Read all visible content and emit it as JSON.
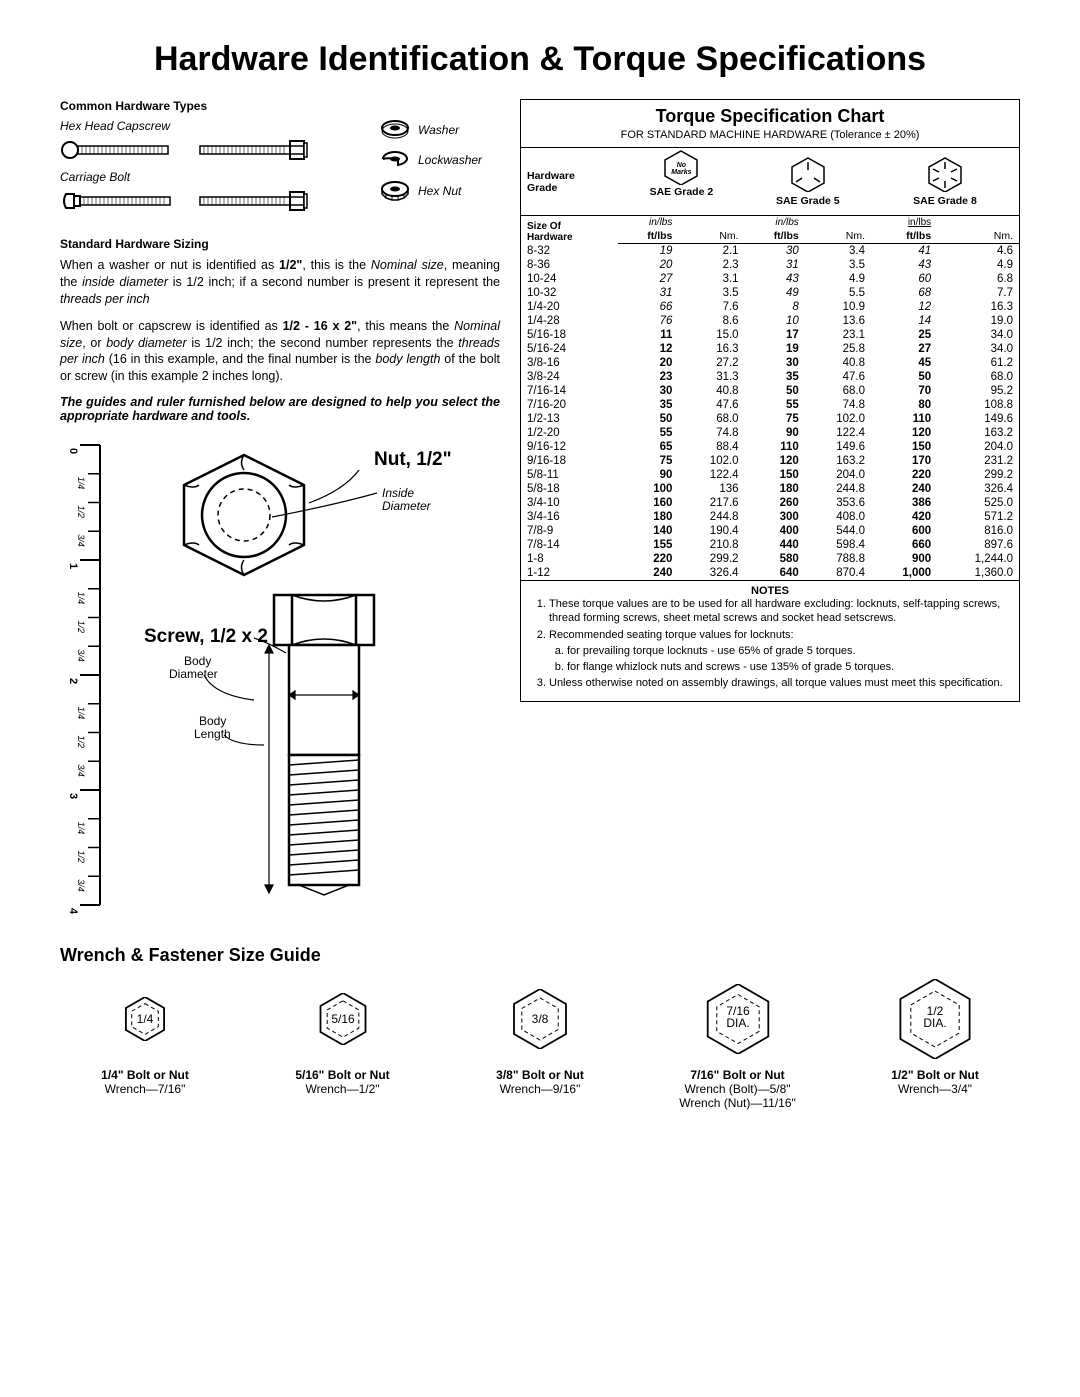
{
  "title": "Hardware Identification  &  Torque Specifications",
  "title_fontsize": 34,
  "hw_types": {
    "heading": "Common Hardware Types",
    "items": {
      "hex_capscrew": "Hex Head Capscrew",
      "carriage_bolt": "Carriage Bolt",
      "washer": "Washer",
      "lockwasher": "Lockwasher",
      "hex_nut": "Hex Nut"
    }
  },
  "sizing": {
    "heading": "Standard Hardware Sizing",
    "para1_pre": "When a washer or nut is identified as ",
    "para1_b1": "1/2\"",
    "para1_mid": ", this is the ",
    "para1_i1": "Nominal size",
    "para1_mid2": ", meaning the ",
    "para1_i2": "inside diameter",
    "para1_mid3": " is 1/2 inch; if a second number is present it represent the ",
    "para1_i3": "threads per inch",
    "para2_pre": "When bolt or capscrew is identified as ",
    "para2_b1": "1/2 - 16 x 2\"",
    "para2_mid": ", this means the ",
    "para2_i1": "Nominal size",
    "para2_mid2": ", or ",
    "para2_i2": "body diameter",
    "para2_mid3": " is 1/2 inch; the second number represents the ",
    "para2_i3": "threads per inch",
    "para2_mid4": " (16 in this example, and the final number is the ",
    "para2_i4": "body length",
    "para2_end": " of the bolt or screw (in this example 2 inches long).",
    "note": "The guides and ruler furnished below are designed to help you select the appropriate hardware and tools."
  },
  "diagram": {
    "nut_label": "Nut, 1/2\"",
    "inside_dia": "Inside\nDiameter",
    "screw_label": "Screw, 1/2 x 2",
    "body_dia": "Body\nDiameter",
    "body_len": "Body\nLength"
  },
  "ruler": {
    "major": [
      "0",
      "1",
      "2",
      "3",
      "4"
    ],
    "minor": [
      "1/4",
      "1/2",
      "3/4"
    ]
  },
  "chart": {
    "title": "Torque Specification Chart",
    "title_fontsize": 18,
    "subtitle": "FOR STANDARD MACHINE HARDWARE (Tolerance ± 20%)",
    "hdr_hardware_grade": "Hardware\nGrade",
    "no_marks": "No\nMarks",
    "grade2": "SAE Grade 2",
    "grade5": "SAE Grade 5",
    "grade8": "SAE Grade 8",
    "size_of_hw": "Size Of\nHardware",
    "inlbs": "in/lbs",
    "ftlbs": "ft/lbs",
    "nm": "Nm.",
    "columns": [
      "size",
      "g2_a",
      "g2_nm",
      "g5_a",
      "g5_nm",
      "g8_a",
      "g8_nm"
    ],
    "italic_rows": 6,
    "rows": [
      [
        "8-32",
        "19",
        "2.1",
        "30",
        "3.4",
        "41",
        "4.6"
      ],
      [
        "8-36",
        "20",
        "2.3",
        "31",
        "3.5",
        "43",
        "4.9"
      ],
      [
        "10-24",
        "27",
        "3.1",
        "43",
        "4.9",
        "60",
        "6.8"
      ],
      [
        "10-32",
        "31",
        "3.5",
        "49",
        "5.5",
        "68",
        "7.7"
      ],
      [
        "1/4-20",
        "66",
        "7.6",
        "8",
        "10.9",
        "12",
        "16.3"
      ],
      [
        "1/4-28",
        "76",
        "8.6",
        "10",
        "13.6",
        "14",
        "19.0"
      ],
      [
        "5/16-18",
        "11",
        "15.0",
        "17",
        "23.1",
        "25",
        "34.0"
      ],
      [
        "5/16-24",
        "12",
        "16.3",
        "19",
        "25.8",
        "27",
        "34.0"
      ],
      [
        "3/8-16",
        "20",
        "27.2",
        "30",
        "40.8",
        "45",
        "61.2"
      ],
      [
        "3/8-24",
        "23",
        "31.3",
        "35",
        "47.6",
        "50",
        "68.0"
      ],
      [
        "7/16-14",
        "30",
        "40.8",
        "50",
        "68.0",
        "70",
        "95.2"
      ],
      [
        "7/16-20",
        "35",
        "47.6",
        "55",
        "74.8",
        "80",
        "108.8"
      ],
      [
        "1/2-13",
        "50",
        "68.0",
        "75",
        "102.0",
        "110",
        "149.6"
      ],
      [
        "1/2-20",
        "55",
        "74.8",
        "90",
        "122.4",
        "120",
        "163.2"
      ],
      [
        "9/16-12",
        "65",
        "88.4",
        "110",
        "149.6",
        "150",
        "204.0"
      ],
      [
        "9/16-18",
        "75",
        "102.0",
        "120",
        "163.2",
        "170",
        "231.2"
      ],
      [
        "5/8-11",
        "90",
        "122.4",
        "150",
        "204.0",
        "220",
        "299.2"
      ],
      [
        "5/8-18",
        "100",
        "136",
        "180",
        "244.8",
        "240",
        "326.4"
      ],
      [
        "3/4-10",
        "160",
        "217.6",
        "260",
        "353.6",
        "386",
        "525.0"
      ],
      [
        "3/4-16",
        "180",
        "244.8",
        "300",
        "408.0",
        "420",
        "571.2"
      ],
      [
        "7/8-9",
        "140",
        "190.4",
        "400",
        "544.0",
        "600",
        "816.0"
      ],
      [
        "7/8-14",
        "155",
        "210.8",
        "440",
        "598.4",
        "660",
        "897.6"
      ],
      [
        "1-8",
        "220",
        "299.2",
        "580",
        "788.8",
        "900",
        "1,244.0"
      ],
      [
        "1-12",
        "240",
        "326.4",
        "640",
        "870.4",
        "1,000",
        "1,360.0"
      ]
    ],
    "notes_heading": "NOTES",
    "notes": [
      "These torque values are to be used for all hardware excluding: locknuts, self-tapping screws, thread forming screws, sheet metal screws and socket head setscrews.",
      "Recommended seating torque values for locknuts:",
      "Unless otherwise noted on assembly drawings, all torque values must meet this specification."
    ],
    "subnotes": [
      "for prevailing torque locknuts - use 65% of grade 5 torques.",
      "for flange whizlock nuts and screws - use 135% of grade 5 torques."
    ],
    "border_color": "#000000",
    "background_color": "#ffffff"
  },
  "wrench": {
    "title": "Wrench & Fastener Size Guide",
    "title_fontsize": 18,
    "items": [
      {
        "hex": "1/4",
        "hex_size": 44,
        "bolt": "1/4\" Bolt or Nut",
        "wrench": "Wrench—7/16\"",
        "wrench2": ""
      },
      {
        "hex": "5/16",
        "hex_size": 52,
        "bolt": "5/16\" Bolt or Nut",
        "wrench": "Wrench—1/2\"",
        "wrench2": ""
      },
      {
        "hex": "3/8",
        "hex_size": 60,
        "bolt": "3/8\" Bolt or Nut",
        "wrench": "Wrench—9/16\"",
        "wrench2": ""
      },
      {
        "hex": "7/16\nDIA.",
        "hex_size": 70,
        "bolt": "7/16\" Bolt or Nut",
        "wrench": "Wrench (Bolt)—5/8\"",
        "wrench2": "Wrench (Nut)—11/16\""
      },
      {
        "hex": "1/2\nDIA.",
        "hex_size": 80,
        "bolt": "1/2\" Bolt or Nut",
        "wrench": "Wrench—3/4\"",
        "wrench2": ""
      }
    ]
  },
  "colors": {
    "text": "#000000",
    "bg": "#ffffff",
    "line": "#000000"
  }
}
